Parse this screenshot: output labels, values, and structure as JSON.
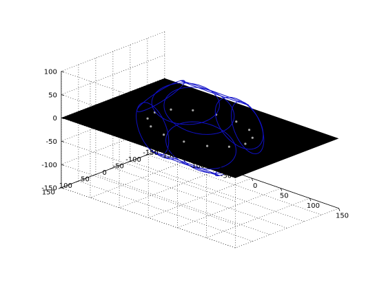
{
  "chart_data": {
    "type": "surface",
    "title": "",
    "xlabel": "",
    "ylabel": "",
    "zlabel": "",
    "xlim": [
      -150,
      150
    ],
    "ylim": [
      -150,
      150
    ],
    "zlim": [
      -150,
      100
    ],
    "x_ticks": [
      "-150",
      "-100",
      "-50",
      "0",
      "50",
      "100",
      "150"
    ],
    "y_ticks": [
      "-150",
      "-100",
      "-50",
      "0",
      "50",
      "100",
      "150"
    ],
    "z_ticks": [
      "-150",
      "-100",
      "-50",
      "0",
      "50",
      "100"
    ],
    "grid": true,
    "plane": {
      "z": 0,
      "color": "#000000"
    },
    "curve_color": "#1010c8",
    "sphere_radius": 95
  }
}
